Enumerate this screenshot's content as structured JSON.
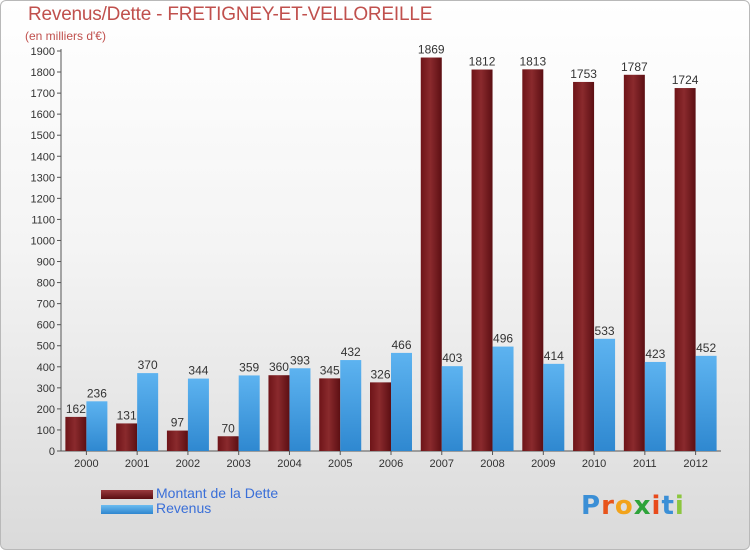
{
  "title": "Revenus/Dette - FRETIGNEY-ET-VELLOREILLE",
  "subtitle": "(en milliers d'€)",
  "legend": {
    "debt_label": "Montant de la Dette",
    "revenue_label": "Revenus"
  },
  "logo": {
    "letters": [
      "P",
      "r",
      "o",
      "x",
      "i",
      "t",
      "i"
    ],
    "colors": [
      "#3b8fd6",
      "#e8541b",
      "#f2a31b",
      "#2ea33a",
      "#e84a1b",
      "#3b8fd6",
      "#8cc63f"
    ]
  },
  "colors": {
    "debt": "#7a1f22",
    "revenue": "#4ea8ea",
    "title": "#c0504d"
  },
  "chart_data": {
    "type": "bar",
    "categories": [
      "2000",
      "2001",
      "2002",
      "2003",
      "2004",
      "2005",
      "2006",
      "2007",
      "2008",
      "2009",
      "2010",
      "2011",
      "2012"
    ],
    "series": [
      {
        "name": "Montant de la Dette",
        "values": [
          162,
          131,
          97,
          70,
          360,
          345,
          326,
          1869,
          1812,
          1813,
          1753,
          1787,
          1724
        ]
      },
      {
        "name": "Revenus",
        "values": [
          236,
          370,
          344,
          359,
          393,
          432,
          466,
          403,
          496,
          414,
          533,
          423,
          452
        ]
      }
    ],
    "ylim": [
      0,
      1900
    ],
    "yticks": [
      0,
      100,
      200,
      300,
      400,
      500,
      600,
      700,
      800,
      900,
      1000,
      1100,
      1200,
      1300,
      1400,
      1500,
      1600,
      1700,
      1800,
      1900
    ],
    "grid": false,
    "legend_position": "bottom-left"
  }
}
